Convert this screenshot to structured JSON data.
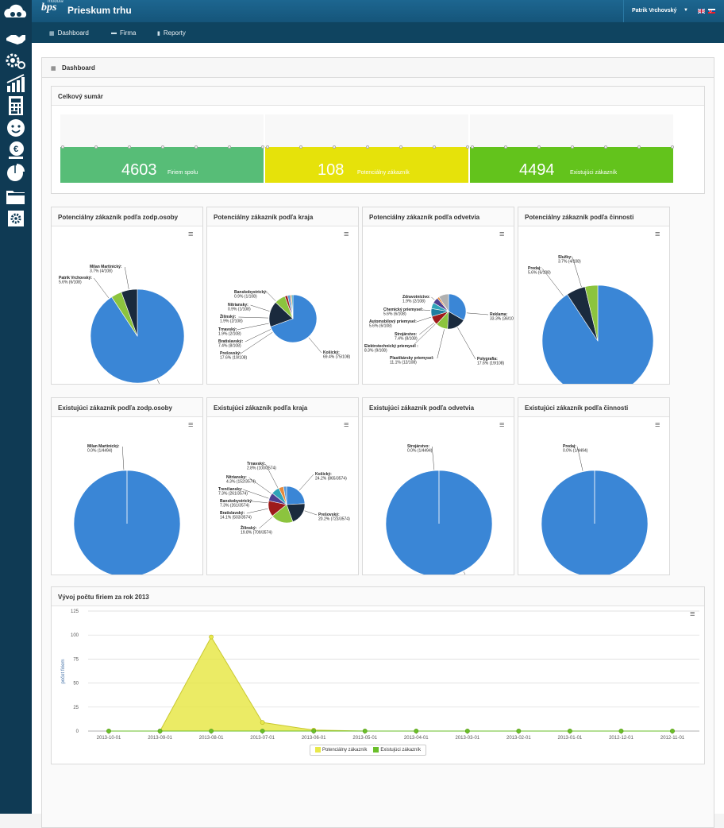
{
  "header": {
    "logo_small": "modula",
    "logo": "bps",
    "app_title": "Prieskum trhu",
    "user_name": "Patrik Vrchovský"
  },
  "nav": [
    {
      "label": "Dashboard",
      "icon": "grid-icon"
    },
    {
      "label": "Firma",
      "icon": "building-icon"
    },
    {
      "label": "Reporty",
      "icon": "bar-chart-icon"
    }
  ],
  "page": {
    "title": "Dashboard"
  },
  "summary": {
    "title": "Celkový sumár",
    "stats": [
      {
        "value": "4603",
        "label": "Firiem spolu",
        "color": "#57bd77"
      },
      {
        "value": "108",
        "label": "Potenciálny zákazník",
        "color": "#e6e20a"
      },
      {
        "value": "4494",
        "label": "Existujúci zákazník",
        "color": "#63c31c"
      }
    ]
  },
  "pies": [
    {
      "title": "Potenciálny zákazník podľa zodp.osoby",
      "total": 108,
      "slices": [
        {
          "name": "Patrik Vrchovský",
          "pct": "90.7%",
          "count": 98,
          "color": "#3a86d6"
        },
        {
          "name": "Milan Martinický",
          "pct": "3.7%",
          "count": 4,
          "color": "#8cc43e"
        },
        {
          "name": "Patrik Vrchovský",
          "pct": "5.6%",
          "count": 6,
          "color": "#1a2a3d"
        }
      ]
    },
    {
      "title": "Potenciálny zákazník podľa kraja",
      "total": 108,
      "slices": [
        {
          "name": "Košický",
          "pct": "69.4%",
          "count": 75,
          "color": "#3a86d6"
        },
        {
          "name": "Prešovský",
          "pct": "17.6%",
          "count": 19,
          "color": "#1a2a3d"
        },
        {
          "name": "Bratislavský",
          "pct": "7.4%",
          "count": 8,
          "color": "#8cc43e"
        },
        {
          "name": "Trnavský",
          "pct": "1.9%",
          "count": 2,
          "color": "#9e1b1b"
        },
        {
          "name": "Žilinský",
          "pct": "1.9%",
          "count": 2,
          "color": "#5a9ad6"
        },
        {
          "name": "Nitriansky",
          "pct": "0.9%",
          "count": 1,
          "color": "#e68a3b"
        },
        {
          "name": "Banskobystrický",
          "pct": "0.9%",
          "count": 1,
          "color": "#2fa4b9"
        }
      ]
    },
    {
      "title": "Potenciálny zákazník podľa odvetvia",
      "total": 108,
      "slices": [
        {
          "name": "Reklama",
          "pct": "33.3%",
          "count": 36,
          "color": "#3a86d6"
        },
        {
          "name": "Polygrafia",
          "pct": "17.6%",
          "count": 19,
          "color": "#1a2a3d"
        },
        {
          "name": "Plastikársky priemysel",
          "pct": "11.1%",
          "count": 12,
          "color": "#8cc43e"
        },
        {
          "name": "Elektrotechnický priemysel",
          "pct": "8.3%",
          "count": 9,
          "color": "#9e1b1b"
        },
        {
          "name": "Strojárstvo",
          "pct": "7.4%",
          "count": 8,
          "color": "#1f7fa0"
        },
        {
          "name": "Automobilový priemysel",
          "pct": "5.6%",
          "count": 6,
          "color": "#2fa4b9"
        },
        {
          "name": "Chemický priemysel",
          "pct": "5.6%",
          "count": 6,
          "color": "#4e3f91"
        },
        {
          "name": "Zdravotníctvo",
          "pct": "1.9%",
          "count": 2,
          "color": "#e68a3b"
        },
        {
          "name": "",
          "pct": "",
          "count": 10,
          "color": "#b0b0b0"
        }
      ]
    },
    {
      "title": "Potenciálny zákazník podľa činnosti",
      "total": 108,
      "slices": [
        {
          "name": "Výroba",
          "pct": "90.7%",
          "count": 98,
          "color": "#3a86d6"
        },
        {
          "name": "Predaj",
          "pct": "5.6%",
          "count": 6,
          "color": "#1a2a3d"
        },
        {
          "name": "Služby",
          "pct": "3.7%",
          "count": 4,
          "color": "#8cc43e"
        }
      ]
    },
    {
      "title": "Existujúci zákazník podľa zodp.osoby",
      "total": 4494,
      "slices": [
        {
          "name": "Patrik Vrchovský",
          "pct": "100.0%",
          "count": 4493,
          "color": "#3a86d6"
        },
        {
          "name": "Milan Martinický",
          "pct": "0.0%",
          "count": 1,
          "color": "#1a2a3d"
        }
      ]
    },
    {
      "title": "Existujúci zákazník podľa kraja",
      "total": 3574,
      "slices": [
        {
          "name": "Košický",
          "pct": "24.2%",
          "count": 865,
          "color": "#3a86d6"
        },
        {
          "name": "Prešovský",
          "pct": "20.2%",
          "count": 723,
          "color": "#1a2a3d"
        },
        {
          "name": "Žilinský",
          "pct": "19.8%",
          "count": 709,
          "color": "#8cc43e"
        },
        {
          "name": "Bratislavský",
          "pct": "14.1%",
          "count": 503,
          "color": "#9e1b1b"
        },
        {
          "name": "Banskobystrický",
          "pct": "7.3%",
          "count": 261,
          "color": "#4e3f91"
        },
        {
          "name": "Trenčiansky",
          "pct": "7.3%",
          "count": 261,
          "color": "#2fa4b9"
        },
        {
          "name": "Nitriansky",
          "pct": "4.3%",
          "count": 152,
          "color": "#e68a3b"
        },
        {
          "name": "Trnavský",
          "pct": "2.8%",
          "count": 100,
          "color": "#5a9ad6"
        }
      ]
    },
    {
      "title": "Existujúci zákazník podľa odvetvia",
      "total": 4494,
      "slices": [
        {
          "name": "Nešpecifikované",
          "pct": "100.0%",
          "count": 4493,
          "color": "#3a86d6"
        },
        {
          "name": "Strojárstvo",
          "pct": "0.0%",
          "count": 1,
          "color": "#1a2a3d"
        }
      ]
    },
    {
      "title": "Existujúci zákazník podľa činnosti",
      "total": 4494,
      "slices": [
        {
          "name": "Neurčené",
          "pct": "100.0%",
          "count": 4493,
          "color": "#3a86d6"
        },
        {
          "name": "Predaj",
          "pct": "0.0%",
          "count": 1,
          "color": "#1a2a3d"
        }
      ]
    }
  ],
  "pie_labels": [
    [
      {
        "t": "Milan Martinický:",
        "v": "3.7% (4/108)"
      },
      {
        "t": "Patrik Vrchovský:",
        "v": "5.6% (6/108)"
      },
      {
        "t": "Patrik Vrchovský:",
        "v": "90.7% (98/108)"
      }
    ],
    [
      {
        "t": "Banskobystrický:",
        "v": "0.9% (1/108)"
      },
      {
        "t": "Nitriansky:",
        "v": "0.9% (1/108)"
      },
      {
        "t": "Žilinský:",
        "v": "1.9% (2/108)"
      },
      {
        "t": "Trnavský:",
        "v": "1.9% (2/108)"
      },
      {
        "t": "Bratislavský:",
        "v": "7.4% (8/108)"
      },
      {
        "t": "Prešovský:",
        "v": "17.6% (19/108)"
      },
      {
        "t": "Košický:",
        "v": "69.4% (75/108)"
      }
    ],
    [
      {
        "t": "Zdravotníctvo:",
        "v": "1.9% (2/108)"
      },
      {
        "t": "Chemický priemysel:",
        "v": "5.6% (6/108)"
      },
      {
        "t": "Automobilový priemysel:",
        "v": "5.6% (6/108)"
      },
      {
        "t": "Strojárstvo:",
        "v": "7.4% (8/108)"
      },
      {
        "t": "Elektrotechnický priemysel :",
        "v": "8.3% (9/108)"
      },
      {
        "t": "Plastikársky priemysel:",
        "v": "11.1% (12/108)"
      },
      {
        "t": "Reklama:",
        "v": "33.3% (36/108)"
      },
      {
        "t": "Polygrafia:",
        "v": "17.6% (19/108)"
      }
    ],
    [
      {
        "t": "Služby:",
        "v": "3.7% (4/108)"
      },
      {
        "t": "Predaj:",
        "v": "5.6% (6/108)"
      },
      {
        "t": "Výroba:",
        "v": "90.7% (98/108)"
      }
    ],
    [
      {
        "t": "Milan Martinický:",
        "v": "0.0% (1/4494)"
      },
      {
        "t": "Patrik Vrchovský:",
        "v": "100.0% (4493/4494)"
      }
    ],
    [
      {
        "t": "Trnavský:",
        "v": "2.8% (100/3574)"
      },
      {
        "t": "Nitriansky:",
        "v": "4.3% (152/3574)"
      },
      {
        "t": "Trenčiansky:",
        "v": "7.3% (261/3574)"
      },
      {
        "t": "Banskobystrický:",
        "v": "7.3% (261/3574)"
      },
      {
        "t": "Bratislavský:",
        "v": "14.1% (503/3574)"
      },
      {
        "t": "Žilinský:",
        "v": "19.8% (709/3574)"
      },
      {
        "t": "Košický:",
        "v": "24.2% (865/3574)"
      },
      {
        "t": "Prešovský:",
        "v": "20.2% (723/3574)"
      }
    ],
    [
      {
        "t": "Strojárstvo:",
        "v": "0.0% (1/4494)"
      },
      {
        "t": "Nešpecifikované:",
        "v": "100.0% (4493/4494)"
      }
    ],
    [
      {
        "t": "Predaj:",
        "v": "0.0% (1/4494)"
      },
      {
        "t": "Neurčené:",
        "v": "100.0% (4493/4494)"
      }
    ]
  ],
  "trend": {
    "title": "Vývoj počtu firiem za rok 2013",
    "ylabel": "počet firiem",
    "legend": [
      "Potenciálny zákazník",
      "Existujúci zákazník"
    ]
  },
  "chart_data": {
    "type": "area",
    "title": "Vývoj počtu firiem za rok 2013",
    "xlabel": "",
    "ylabel": "počet firiem",
    "ylim": [
      0,
      125
    ],
    "yticks": [
      0,
      25,
      50,
      75,
      100,
      125
    ],
    "categories": [
      "2013-10-01",
      "2013-09-01",
      "2013-08-01",
      "2013-07-01",
      "2013-06-01",
      "2013-05-01",
      "2013-04-01",
      "2013-03-01",
      "2013-02-01",
      "2013-01-01",
      "2012-12-01",
      "2012-11-01"
    ],
    "series": [
      {
        "name": "Potenciálny zákazník",
        "color": "#e8e84a",
        "values": [
          0,
          0,
          98,
          9,
          1,
          0,
          0,
          0,
          0,
          0,
          0,
          0
        ]
      },
      {
        "name": "Existujúci zákazník",
        "color": "#6abf2a",
        "values": [
          0,
          0,
          0,
          0,
          0,
          0,
          0,
          0,
          0,
          0,
          0,
          0
        ]
      }
    ],
    "legend": "bottom-center",
    "grid": true
  }
}
